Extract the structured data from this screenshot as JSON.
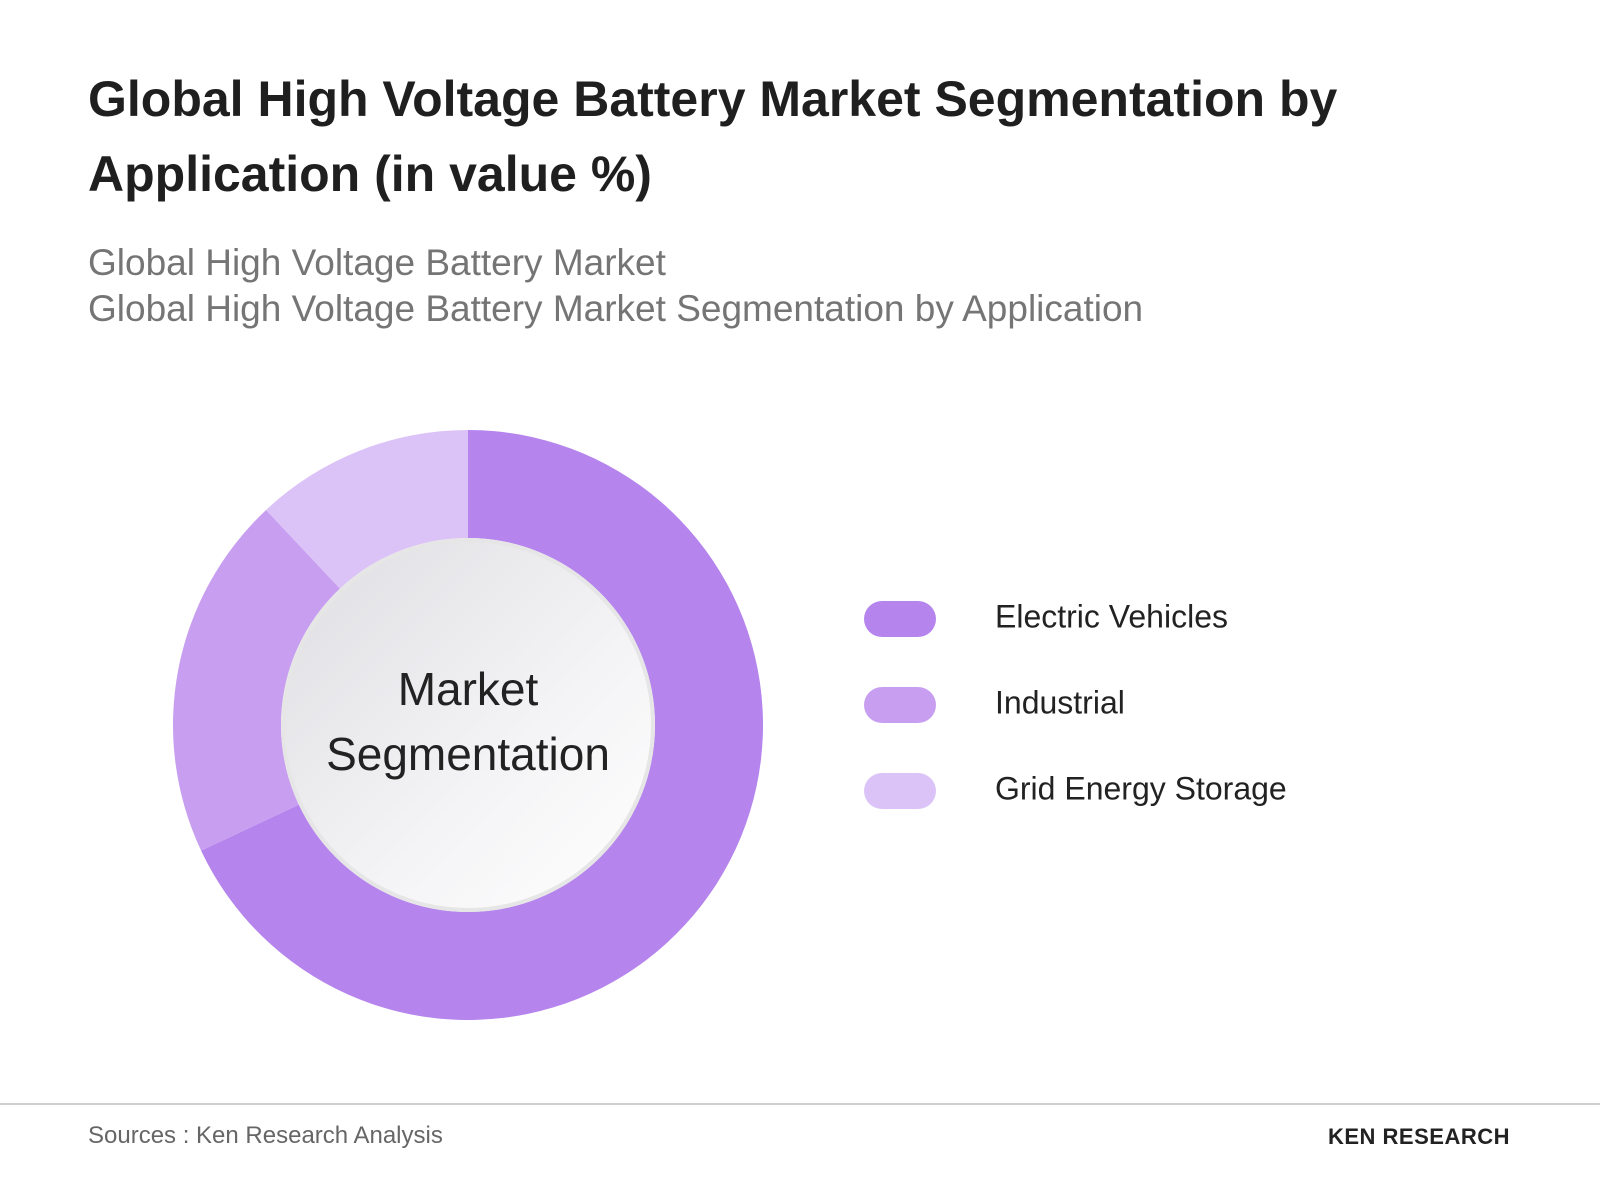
{
  "chart_data": {
    "type": "donut",
    "title": "Global High Voltage Battery Market Segmentation by Application (in value %)",
    "subtitle": [
      "Global High Voltage Battery Market",
      "Global High Voltage Battery Market Segmentation by Application"
    ],
    "center_label": [
      "Market",
      "Segmentation"
    ],
    "categories": [
      "Electric Vehicles",
      "Industrial",
      "Grid Energy Storage"
    ],
    "values": [
      68,
      20,
      12
    ],
    "colors": [
      "#b584ed",
      "#c89ff0",
      "#dcc3f7"
    ],
    "source": "Sources : Ken Research Analysis",
    "logo": "KEN RESEARCH"
  }
}
